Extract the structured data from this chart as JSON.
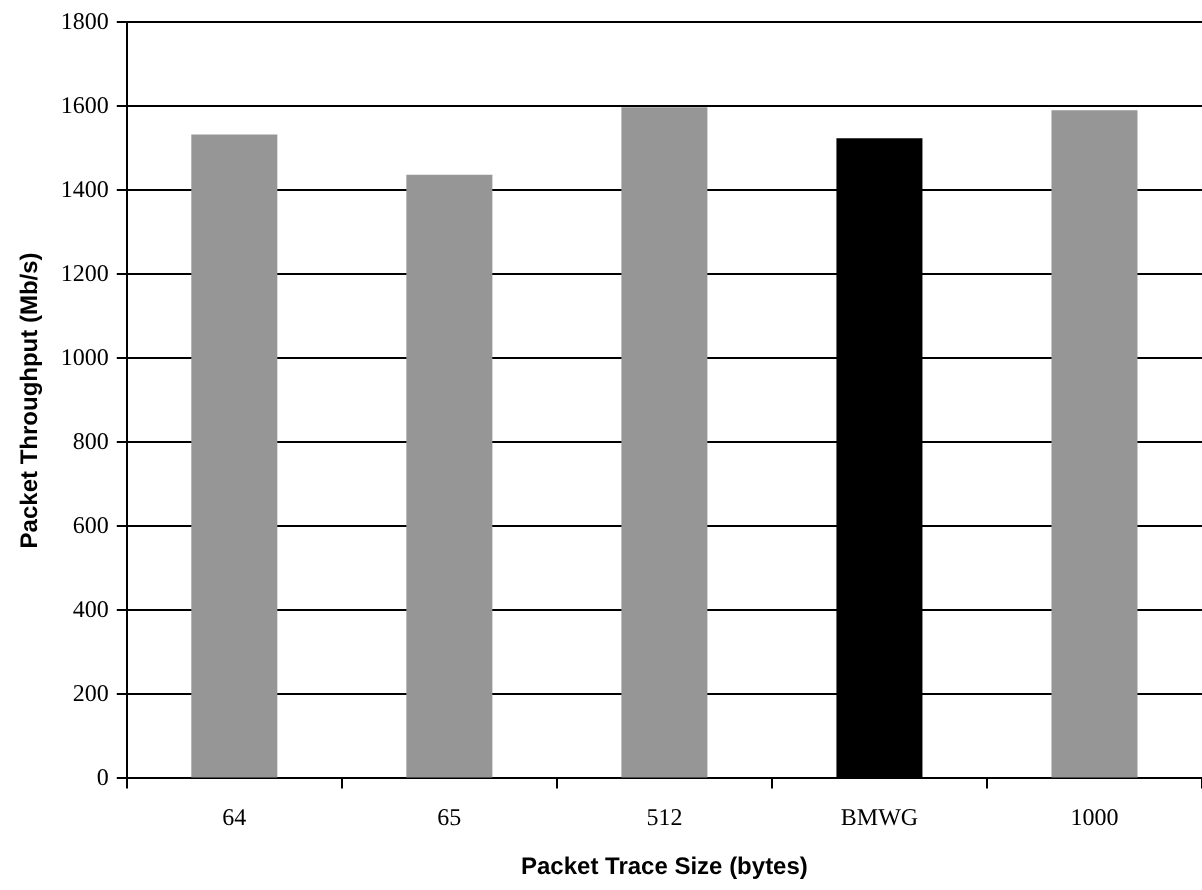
{
  "chart_data": {
    "type": "bar",
    "xlabel": "Packet Trace Size (bytes)",
    "ylabel": "Packet Throughput (Mb/s)",
    "categories": [
      "64",
      "65",
      "512",
      "BMWG",
      "1000"
    ],
    "values": [
      1533,
      1437,
      1598,
      1524,
      1591
    ],
    "colors": [
      "#969696",
      "#969696",
      "#969696",
      "#000000",
      "#969696"
    ],
    "ylim": [
      0,
      1800
    ],
    "yticks": [
      0,
      200,
      400,
      600,
      800,
      1000,
      1200,
      1400,
      1600,
      1800
    ],
    "grid": "y"
  }
}
